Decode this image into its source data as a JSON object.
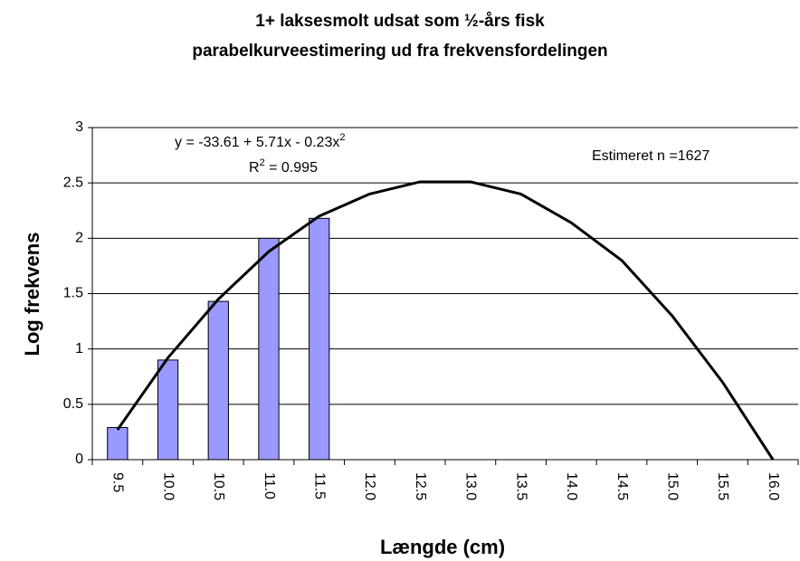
{
  "chart_data": {
    "type": "bar",
    "title": [
      "1+ laksesmolt udsat som ½-års fisk",
      "parabelkurveestimering ud fra frekvensfordelingen"
    ],
    "x_label": "Længde (cm)",
    "y_label": "Log frekvens",
    "annotations": {
      "equation": [
        "y = -33.61 + 5.71x - 0.23x",
        "2"
      ],
      "r_squared": [
        "R",
        "2",
        " = 0.995"
      ],
      "estimate": "Estimeret n =1627"
    },
    "categories": [
      "9.5",
      "10.0",
      "10.5",
      "11.0",
      "11.5",
      "12.0",
      "12.5",
      "13.0",
      "13.5",
      "14.0",
      "14.5",
      "15.0",
      "15.5",
      "16.0"
    ],
    "series": [
      {
        "type": "bar",
        "color": "#9999ff",
        "values": [
          0.29,
          0.9,
          1.43,
          2.0,
          2.18,
          null,
          null,
          null,
          null,
          null,
          null,
          null,
          null,
          null
        ]
      },
      {
        "type": "line",
        "color": "#000000",
        "values": [
          0.27,
          0.92,
          1.45,
          1.88,
          2.2,
          2.4,
          2.51,
          2.51,
          2.4,
          2.14,
          1.8,
          1.3,
          0.7,
          0.0
        ]
      }
    ],
    "ylim": [
      0,
      3
    ],
    "yticks": [
      0,
      0.5,
      1,
      1.5,
      2,
      2.5,
      3
    ],
    "grid": true
  }
}
